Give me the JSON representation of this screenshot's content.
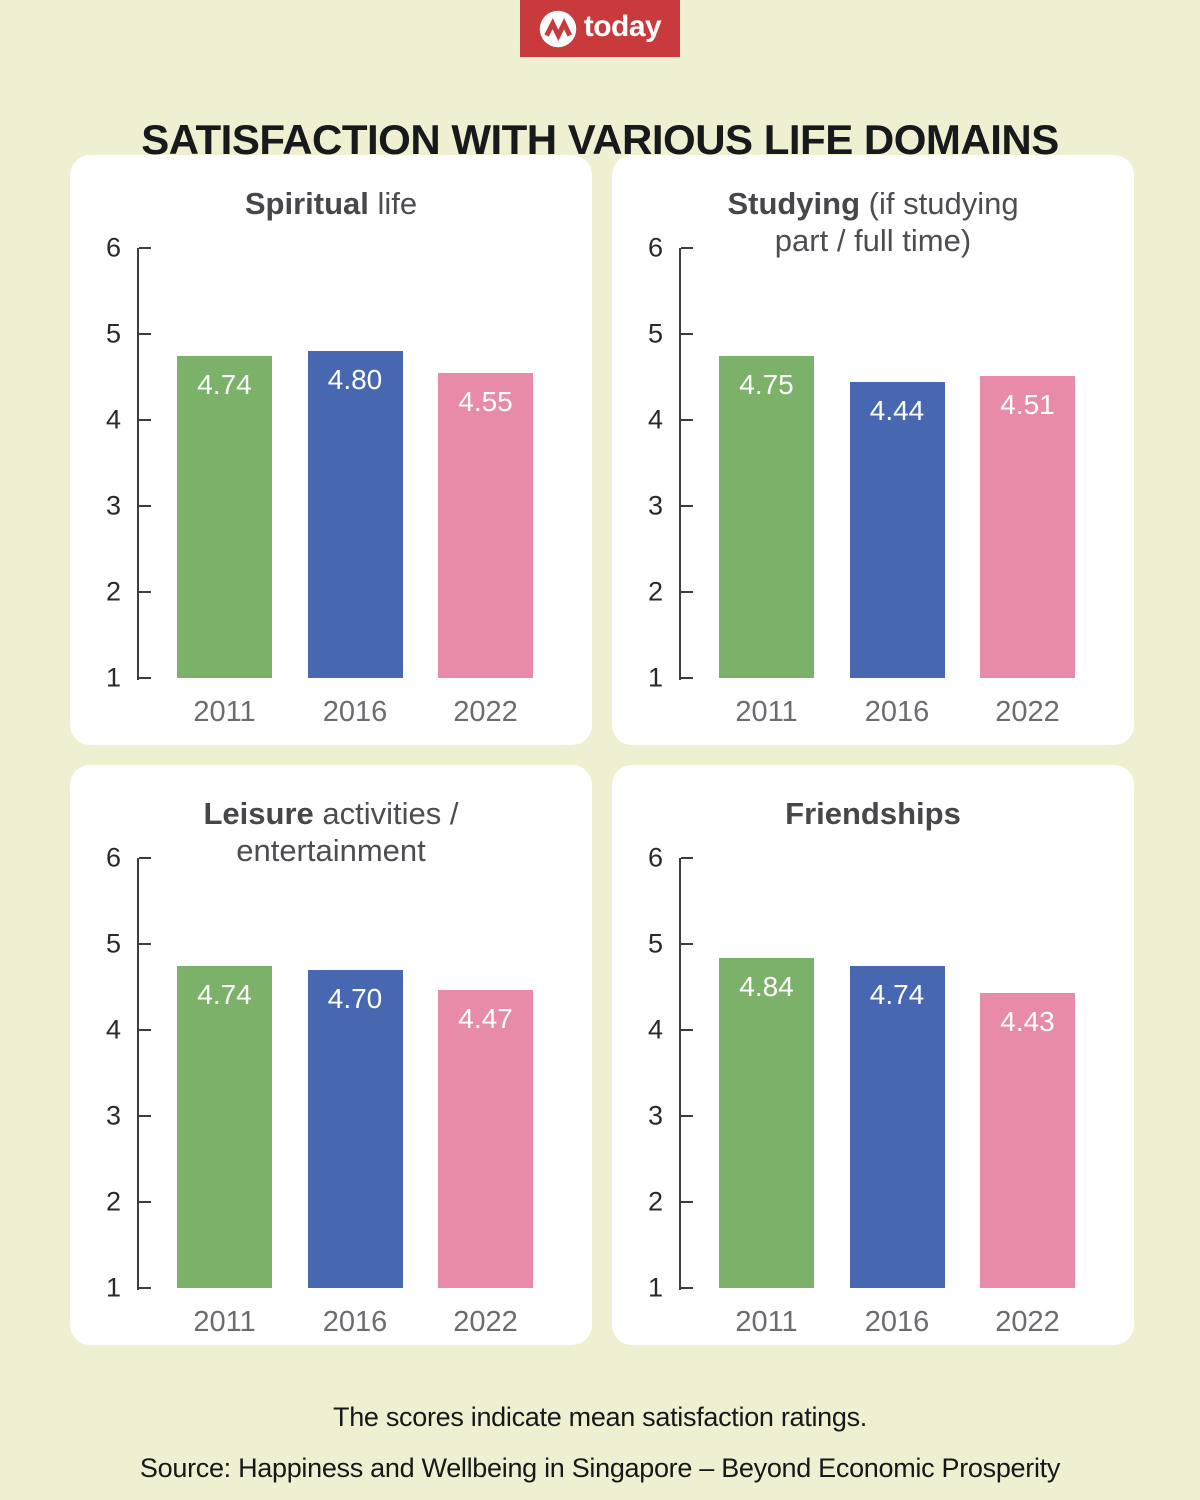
{
  "background_color": "#eff0d1",
  "card_color": "#ffffff",
  "logo": {
    "text": "today",
    "bg_color": "#c93a3c",
    "icon": "today-m-ribbon-icon"
  },
  "title": "SATISFACTION WITH VARIOUS LIFE DOMAINS",
  "palette": {
    "2011": "#7cb169",
    "2016": "#4767b0",
    "2022": "#e78ba9"
  },
  "chart_data": [
    {
      "type": "bar",
      "title": "Spiritual life",
      "title_lines": [
        [
          {
            "bold": true,
            "text": "Spiritual"
          },
          {
            "bold": false,
            "text": " life"
          }
        ]
      ],
      "categories": [
        "2011",
        "2016",
        "2022"
      ],
      "values": [
        4.74,
        4.8,
        4.55
      ],
      "value_labels": [
        "4.74",
        "4.80",
        "4.55"
      ],
      "ylim": [
        1,
        6
      ],
      "yticks": [
        6,
        5,
        4,
        3,
        2,
        1
      ],
      "grid": false,
      "legend": "none"
    },
    {
      "type": "bar",
      "title": "Studying (if studying part / full time)",
      "title_lines": [
        [
          {
            "bold": true,
            "text": "Studying"
          },
          {
            "bold": false,
            "text": " (if studying"
          }
        ],
        [
          {
            "bold": false,
            "text": "part / full time)"
          }
        ]
      ],
      "categories": [
        "2011",
        "2016",
        "2022"
      ],
      "values": [
        4.75,
        4.44,
        4.51
      ],
      "value_labels": [
        "4.75",
        "4.44",
        "4.51"
      ],
      "ylim": [
        1,
        6
      ],
      "yticks": [
        6,
        5,
        4,
        3,
        2,
        1
      ],
      "grid": false,
      "legend": "none"
    },
    {
      "type": "bar",
      "title": "Leisure activities / entertainment",
      "title_lines": [
        [
          {
            "bold": true,
            "text": "Leisure"
          },
          {
            "bold": false,
            "text": " activities /"
          }
        ],
        [
          {
            "bold": false,
            "text": "entertainment"
          }
        ]
      ],
      "categories": [
        "2011",
        "2016",
        "2022"
      ],
      "values": [
        4.74,
        4.7,
        4.47
      ],
      "value_labels": [
        "4.74",
        "4.70",
        "4.47"
      ],
      "ylim": [
        1,
        6
      ],
      "yticks": [
        6,
        5,
        4,
        3,
        2,
        1
      ],
      "grid": false,
      "legend": "none"
    },
    {
      "type": "bar",
      "title": "Friendships",
      "title_lines": [
        [
          {
            "bold": true,
            "text": "Friendships"
          }
        ]
      ],
      "categories": [
        "2011",
        "2016",
        "2022"
      ],
      "values": [
        4.84,
        4.74,
        4.43
      ],
      "value_labels": [
        "4.84",
        "4.74",
        "4.43"
      ],
      "ylim": [
        1,
        6
      ],
      "yticks": [
        6,
        5,
        4,
        3,
        2,
        1
      ],
      "grid": false,
      "legend": "none"
    }
  ],
  "footer": {
    "note": "The scores indicate mean satisfaction ratings.",
    "source": "Source: Happiness and Wellbeing in Singapore – Beyond Economic Prosperity"
  }
}
